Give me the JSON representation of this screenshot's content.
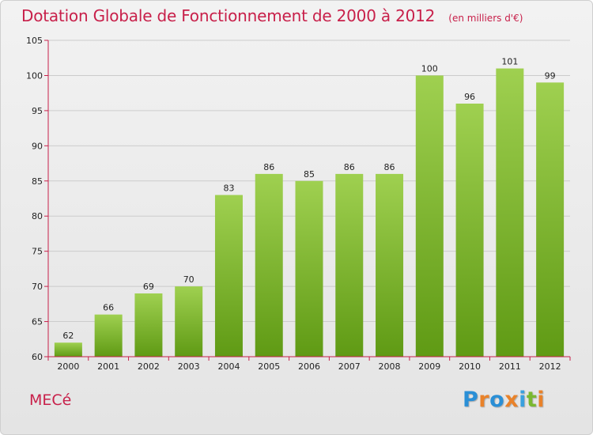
{
  "chart_data": {
    "type": "bar",
    "title": "Dotation Globale de Fonctionnement de 2000 à 2012",
    "unit": "(en milliers d'€)",
    "categories": [
      "2000",
      "2001",
      "2002",
      "2003",
      "2004",
      "2005",
      "2006",
      "2007",
      "2008",
      "2009",
      "2010",
      "2011",
      "2012"
    ],
    "values": [
      62,
      66,
      69,
      70,
      83,
      86,
      85,
      86,
      86,
      100,
      96,
      101,
      99
    ],
    "data_labels": [
      "62",
      "66",
      "69",
      "70",
      "83",
      "86",
      "85",
      "86",
      "86",
      "100",
      "96",
      "101",
      "99"
    ],
    "ylim": [
      60,
      105
    ],
    "yticks": [
      60,
      65,
      70,
      75,
      80,
      85,
      90,
      95,
      100,
      105
    ],
    "grid": true,
    "bar_color": "#7ab830"
  },
  "commune": "MECé",
  "brand": {
    "letters": [
      "P",
      "r",
      "o",
      "x",
      "i",
      "t",
      "i"
    ],
    "colors": [
      "#2a8fd6",
      "#e9822a",
      "#2a8fd6",
      "#e9822a",
      "#3aa0de",
      "#7ab830",
      "#e9822a"
    ]
  },
  "colors": {
    "title": "#c8204a",
    "axis": "#c8204a",
    "grid": "#cccccc"
  }
}
